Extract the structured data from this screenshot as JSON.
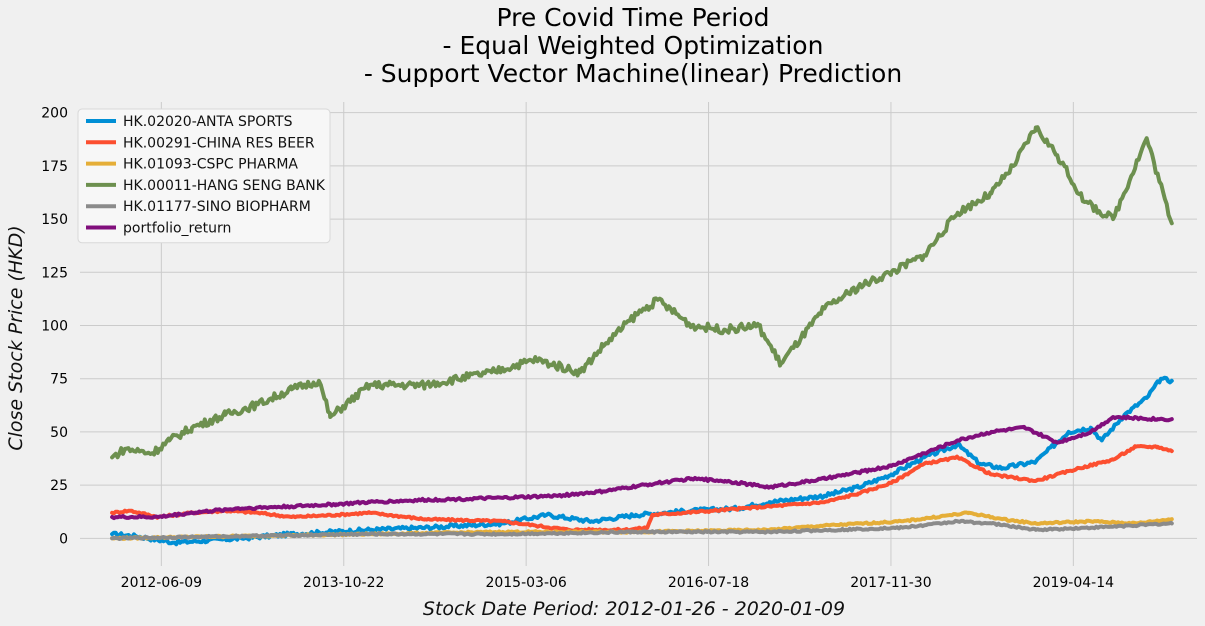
{
  "chart_data": {
    "type": "line",
    "title_lines": [
      "Pre Covid Time Period",
      "- Equal Weighted Optimization",
      "- Support Vector Machine(linear) Prediction"
    ],
    "xlabel": "Stock Date Period: 2012-01-26 - 2020-01-09",
    "ylabel": "Close Stock Price (HKD)",
    "xlim": [
      "2011-10-30",
      "2020-03-18"
    ],
    "ylim": [
      -13,
      205
    ],
    "yticks": [
      0,
      25,
      50,
      75,
      100,
      125,
      150,
      175,
      200
    ],
    "xticks": [
      "2012-06-09",
      "2013-10-22",
      "2015-03-06",
      "2016-07-18",
      "2017-11-30",
      "2019-04-14"
    ],
    "grid": true,
    "legend_position": "top-left",
    "series": [
      {
        "name": "HK.02020-ANTA SPORTS",
        "color": "#008fd5",
        "points": [
          [
            "2012-01-26",
            2
          ],
          [
            "2012-04-01",
            1
          ],
          [
            "2012-07-15",
            -2
          ],
          [
            "2012-10-15",
            -1
          ],
          [
            "2013-01-15",
            0
          ],
          [
            "2013-06-01",
            2
          ],
          [
            "2014-01-01",
            4
          ],
          [
            "2014-06-01",
            5
          ],
          [
            "2015-01-01",
            7
          ],
          [
            "2015-05-01",
            11
          ],
          [
            "2015-09-01",
            8
          ],
          [
            "2016-01-01",
            11
          ],
          [
            "2016-06-01",
            13
          ],
          [
            "2016-10-01",
            14
          ],
          [
            "2017-01-01",
            17
          ],
          [
            "2017-06-01",
            20
          ],
          [
            "2017-09-01",
            24
          ],
          [
            "2017-12-01",
            30
          ],
          [
            "2018-03-01",
            38
          ],
          [
            "2018-06-01",
            44
          ],
          [
            "2018-08-01",
            35
          ],
          [
            "2018-10-01",
            33
          ],
          [
            "2019-01-01",
            36
          ],
          [
            "2019-04-01",
            50
          ],
          [
            "2019-06-01",
            52
          ],
          [
            "2019-07-01",
            46
          ],
          [
            "2019-09-01",
            58
          ],
          [
            "2019-11-01",
            66
          ],
          [
            "2019-12-10",
            75
          ],
          [
            "2020-01-09",
            74
          ]
        ]
      },
      {
        "name": "HK.00291-CHINA RES BEER",
        "color": "#fc4f30",
        "points": [
          [
            "2012-01-26",
            12
          ],
          [
            "2012-03-15",
            13
          ],
          [
            "2012-06-01",
            10
          ],
          [
            "2012-09-01",
            12
          ],
          [
            "2012-12-01",
            13
          ],
          [
            "2013-03-01",
            12
          ],
          [
            "2013-06-01",
            10
          ],
          [
            "2013-10-01",
            11
          ],
          [
            "2014-01-01",
            12
          ],
          [
            "2014-06-01",
            9
          ],
          [
            "2015-01-01",
            8
          ],
          [
            "2015-04-01",
            6
          ],
          [
            "2015-07-01",
            4
          ],
          [
            "2015-12-01",
            4
          ],
          [
            "2016-02-01",
            5
          ],
          [
            "2016-02-15",
            11
          ],
          [
            "2016-08-01",
            13
          ],
          [
            "2017-01-01",
            15
          ],
          [
            "2017-06-01",
            17
          ],
          [
            "2017-09-01",
            21
          ],
          [
            "2017-12-01",
            26
          ],
          [
            "2018-03-01",
            35
          ],
          [
            "2018-06-01",
            38
          ],
          [
            "2018-09-01",
            30
          ],
          [
            "2019-01-01",
            27
          ],
          [
            "2019-05-01",
            33
          ],
          [
            "2019-08-01",
            37
          ],
          [
            "2019-10-01",
            43
          ],
          [
            "2019-12-01",
            43
          ],
          [
            "2020-01-09",
            41
          ]
        ]
      },
      {
        "name": "HK.01093-CSPC PHARMA",
        "color": "#e5ae38",
        "points": [
          [
            "2012-01-26",
            0
          ],
          [
            "2013-01-01",
            1
          ],
          [
            "2014-01-01",
            2
          ],
          [
            "2015-01-01",
            3
          ],
          [
            "2016-01-01",
            3
          ],
          [
            "2017-01-01",
            4
          ],
          [
            "2017-06-01",
            6
          ],
          [
            "2018-01-01",
            8
          ],
          [
            "2018-07-01",
            12
          ],
          [
            "2018-10-01",
            9
          ],
          [
            "2019-01-01",
            7
          ],
          [
            "2019-06-01",
            8
          ],
          [
            "2019-10-01",
            7
          ],
          [
            "2020-01-09",
            9
          ]
        ]
      },
      {
        "name": "HK.00011-HANG SENG BANK",
        "color": "#6d904f",
        "points": [
          [
            "2012-01-26",
            38
          ],
          [
            "2012-03-01",
            42
          ],
          [
            "2012-05-15",
            40
          ],
          [
            "2012-07-01",
            46
          ],
          [
            "2012-09-01",
            52
          ],
          [
            "2012-12-01",
            58
          ],
          [
            "2013-03-01",
            63
          ],
          [
            "2013-06-01",
            70
          ],
          [
            "2013-08-15",
            74
          ],
          [
            "2013-09-15",
            57
          ],
          [
            "2014-01-01",
            72
          ],
          [
            "2014-06-01",
            72
          ],
          [
            "2014-12-01",
            78
          ],
          [
            "2015-04-01",
            84
          ],
          [
            "2015-08-01",
            78
          ],
          [
            "2015-10-01",
            90
          ],
          [
            "2016-01-01",
            105
          ],
          [
            "2016-03-01",
            112
          ],
          [
            "2016-06-01",
            100
          ],
          [
            "2016-09-01",
            98
          ],
          [
            "2016-12-01",
            100
          ],
          [
            "2017-02-01",
            82
          ],
          [
            "2017-06-01",
            108
          ],
          [
            "2017-09-01",
            118
          ],
          [
            "2017-12-01",
            125
          ],
          [
            "2018-03-01",
            133
          ],
          [
            "2018-06-01",
            153
          ],
          [
            "2018-09-01",
            162
          ],
          [
            "2018-11-01",
            175
          ],
          [
            "2019-01-01",
            193
          ],
          [
            "2019-03-01",
            180
          ],
          [
            "2019-05-15",
            158
          ],
          [
            "2019-08-01",
            150
          ],
          [
            "2019-11-01",
            188
          ],
          [
            "2020-01-09",
            148
          ]
        ]
      },
      {
        "name": "HK.01177-SINO BIOPHARM",
        "color": "#8b8b8b",
        "points": [
          [
            "2012-01-26",
            0
          ],
          [
            "2013-01-01",
            1
          ],
          [
            "2014-01-01",
            2
          ],
          [
            "2015-01-01",
            2
          ],
          [
            "2016-01-01",
            3
          ],
          [
            "2017-01-01",
            3
          ],
          [
            "2018-01-01",
            5
          ],
          [
            "2018-06-01",
            8
          ],
          [
            "2018-09-01",
            7
          ],
          [
            "2019-01-01",
            4
          ],
          [
            "2019-06-01",
            5
          ],
          [
            "2020-01-09",
            7
          ]
        ]
      },
      {
        "name": "portfolio_return",
        "color": "#810f7c",
        "points": [
          [
            "2012-01-26",
            10
          ],
          [
            "2012-06-01",
            10
          ],
          [
            "2012-09-01",
            12
          ],
          [
            "2013-01-01",
            14
          ],
          [
            "2013-06-01",
            15
          ],
          [
            "2013-10-01",
            16
          ],
          [
            "2014-01-01",
            17
          ],
          [
            "2014-06-01",
            18
          ],
          [
            "2015-01-01",
            19
          ],
          [
            "2015-06-01",
            20
          ],
          [
            "2015-10-01",
            22
          ],
          [
            "2016-03-01",
            26
          ],
          [
            "2016-06-01",
            28
          ],
          [
            "2016-09-01",
            27
          ],
          [
            "2017-01-01",
            24
          ],
          [
            "2017-06-01",
            28
          ],
          [
            "2017-09-01",
            31
          ],
          [
            "2017-12-01",
            34
          ],
          [
            "2018-03-01",
            40
          ],
          [
            "2018-06-01",
            46
          ],
          [
            "2018-09-01",
            50
          ],
          [
            "2018-12-01",
            52
          ],
          [
            "2019-03-01",
            45
          ],
          [
            "2019-06-01",
            50
          ],
          [
            "2019-08-01",
            57
          ],
          [
            "2019-12-01",
            56
          ],
          [
            "2020-01-09",
            56
          ]
        ]
      }
    ]
  },
  "colors": {
    "background": "#f0f0f0",
    "grid": "#cbcbcb"
  }
}
